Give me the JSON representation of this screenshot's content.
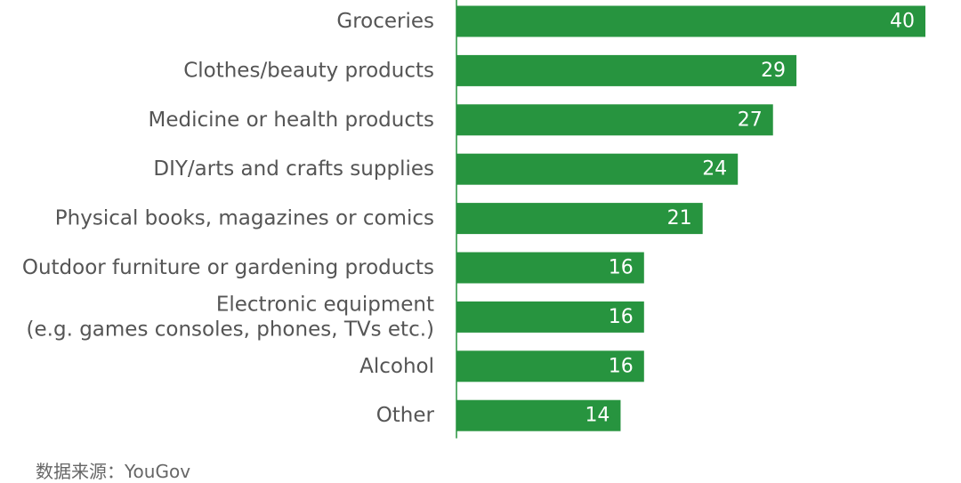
{
  "chart_data": {
    "type": "bar",
    "orientation": "horizontal",
    "categories": [
      [
        "Groceries"
      ],
      [
        "Clothes/beauty products"
      ],
      [
        "Medicine or health products"
      ],
      [
        "DIY/arts and crafts supplies"
      ],
      [
        "Physical books, magazines or comics"
      ],
      [
        "Outdoor furniture or gardening products"
      ],
      [
        "Electronic equipment",
        "(e.g. games consoles, phones, TVs etc.)"
      ],
      [
        "Alcohol"
      ],
      [
        "Other"
      ]
    ],
    "values": [
      40,
      29,
      27,
      24,
      21,
      16,
      16,
      16,
      14
    ],
    "xlim": [
      0,
      40
    ],
    "grid": false,
    "bar_color": "#27943f",
    "value_label_color": "#ffffff"
  },
  "source": {
    "text": "数据来源：YouGov"
  }
}
